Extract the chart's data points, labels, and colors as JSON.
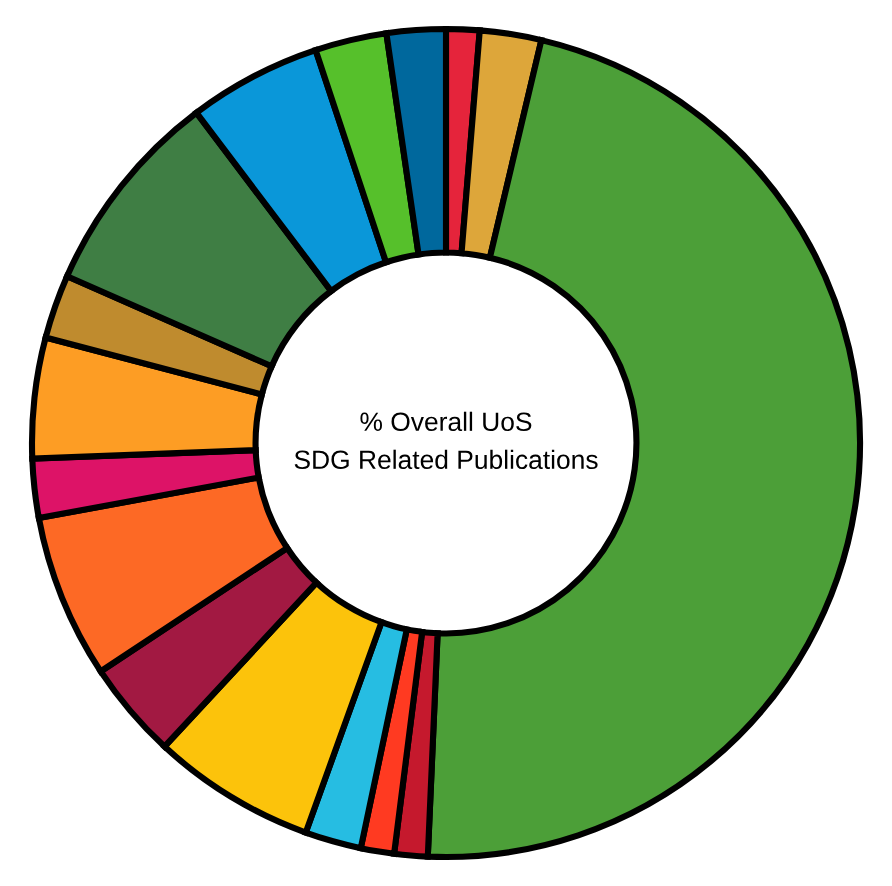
{
  "chart_data": {
    "type": "donut",
    "title": "% Overall UoS\nSDG Related Publications",
    "categories": [
      null,
      null,
      null,
      null,
      null,
      null,
      null,
      null,
      null,
      null,
      null,
      null,
      null,
      null,
      null,
      null
    ],
    "values": [
      1.3,
      2.4,
      47.0,
      1.3,
      1.3,
      2.2,
      6.4,
      3.8,
      6.4,
      2.3,
      4.7,
      2.5,
      8.1,
      5.2,
      2.8,
      2.3
    ],
    "colors": [
      "#e5243b",
      "#dda63a",
      "#4c9f38",
      "#c5192d",
      "#ff3a21",
      "#26bde2",
      "#fcc30b",
      "#a21942",
      "#fd6925",
      "#dd1367",
      "#fd9d24",
      "#bf8b2e",
      "#3f7e44",
      "#0a97d9",
      "#56c02b",
      "#00689d"
    ]
  }
}
